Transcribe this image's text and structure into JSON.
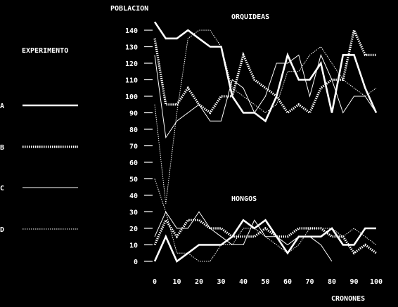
{
  "chart_data": {
    "type": "line",
    "ylabel": "POBLACION",
    "xlabel": "CRONONES",
    "legend_title": "EXPERIMENTO",
    "legend_position": "left",
    "annotations": {
      "top": "ORQUIDEAS",
      "bottom": "HONGOS"
    },
    "x": [
      0,
      5,
      10,
      15,
      20,
      25,
      30,
      35,
      40,
      45,
      50,
      55,
      60,
      65,
      70,
      75,
      80,
      85,
      90,
      95,
      100
    ],
    "x_ticks": [
      0,
      10,
      20,
      30,
      40,
      50,
      60,
      70,
      80,
      90,
      100
    ],
    "y_ticks": [
      0,
      10,
      20,
      30,
      40,
      50,
      60,
      70,
      80,
      90,
      100,
      110,
      120,
      130,
      140
    ],
    "xlim": [
      0,
      100
    ],
    "ylim": [
      0,
      145
    ],
    "grid": false,
    "colors": {
      "background": "#000000",
      "foreground": "#ffffff"
    },
    "series": [
      {
        "name": "A",
        "style": "thick",
        "group": "ORQUIDEAS",
        "values": [
          145,
          135,
          135,
          140,
          135,
          130,
          130,
          100,
          90,
          90,
          85,
          100,
          125,
          110,
          110,
          120,
          90,
          125,
          125,
          105,
          90
        ]
      },
      {
        "name": "B",
        "style": "dotted-thick",
        "group": "ORQUIDEAS",
        "values": [
          135,
          95,
          95,
          105,
          95,
          90,
          100,
          100,
          125,
          110,
          105,
          100,
          90,
          95,
          90,
          105,
          110,
          110,
          140,
          125,
          125
        ]
      },
      {
        "name": "C",
        "style": "thin",
        "group": "ORQUIDEAS",
        "values": [
          125,
          75,
          85,
          90,
          95,
          85,
          85,
          110,
          105,
          90,
          100,
          120,
          120,
          125,
          100,
          125,
          110,
          90,
          100,
          100,
          90
        ]
      },
      {
        "name": "D",
        "style": "dotted-thin",
        "group": "ORQUIDEAS",
        "values": [
          95,
          35,
          90,
          135,
          140,
          140,
          130,
          105,
          100,
          95,
          90,
          95,
          115,
          115,
          125,
          130,
          120,
          110,
          105,
          100,
          105
        ]
      },
      {
        "name": "A",
        "style": "thick",
        "group": "HONGOS",
        "values": [
          0,
          15,
          0,
          5,
          10,
          10,
          10,
          15,
          25,
          20,
          25,
          15,
          5,
          15,
          15,
          15,
          20,
          10,
          10,
          20,
          20
        ]
      },
      {
        "name": "B",
        "style": "dotted-thick",
        "group": "HONGOS",
        "values": [
          10,
          25,
          15,
          25,
          25,
          20,
          20,
          15,
          15,
          15,
          20,
          15,
          15,
          20,
          20,
          20,
          15,
          15,
          5,
          10,
          5
        ]
      },
      {
        "name": "C",
        "style": "thin",
        "group": "HONGOS",
        "values": [
          15,
          30,
          20,
          20,
          30,
          20,
          15,
          10,
          10,
          25,
          15,
          15,
          10,
          15,
          15,
          10,
          0,
          null,
          null,
          null,
          null
        ]
      },
      {
        "name": "D",
        "style": "dotted-thin",
        "group": "HONGOS",
        "values": [
          50,
          30,
          5,
          5,
          0,
          0,
          10,
          10,
          20,
          20,
          15,
          10,
          5,
          10,
          20,
          20,
          20,
          15,
          20,
          15,
          10
        ]
      }
    ]
  }
}
